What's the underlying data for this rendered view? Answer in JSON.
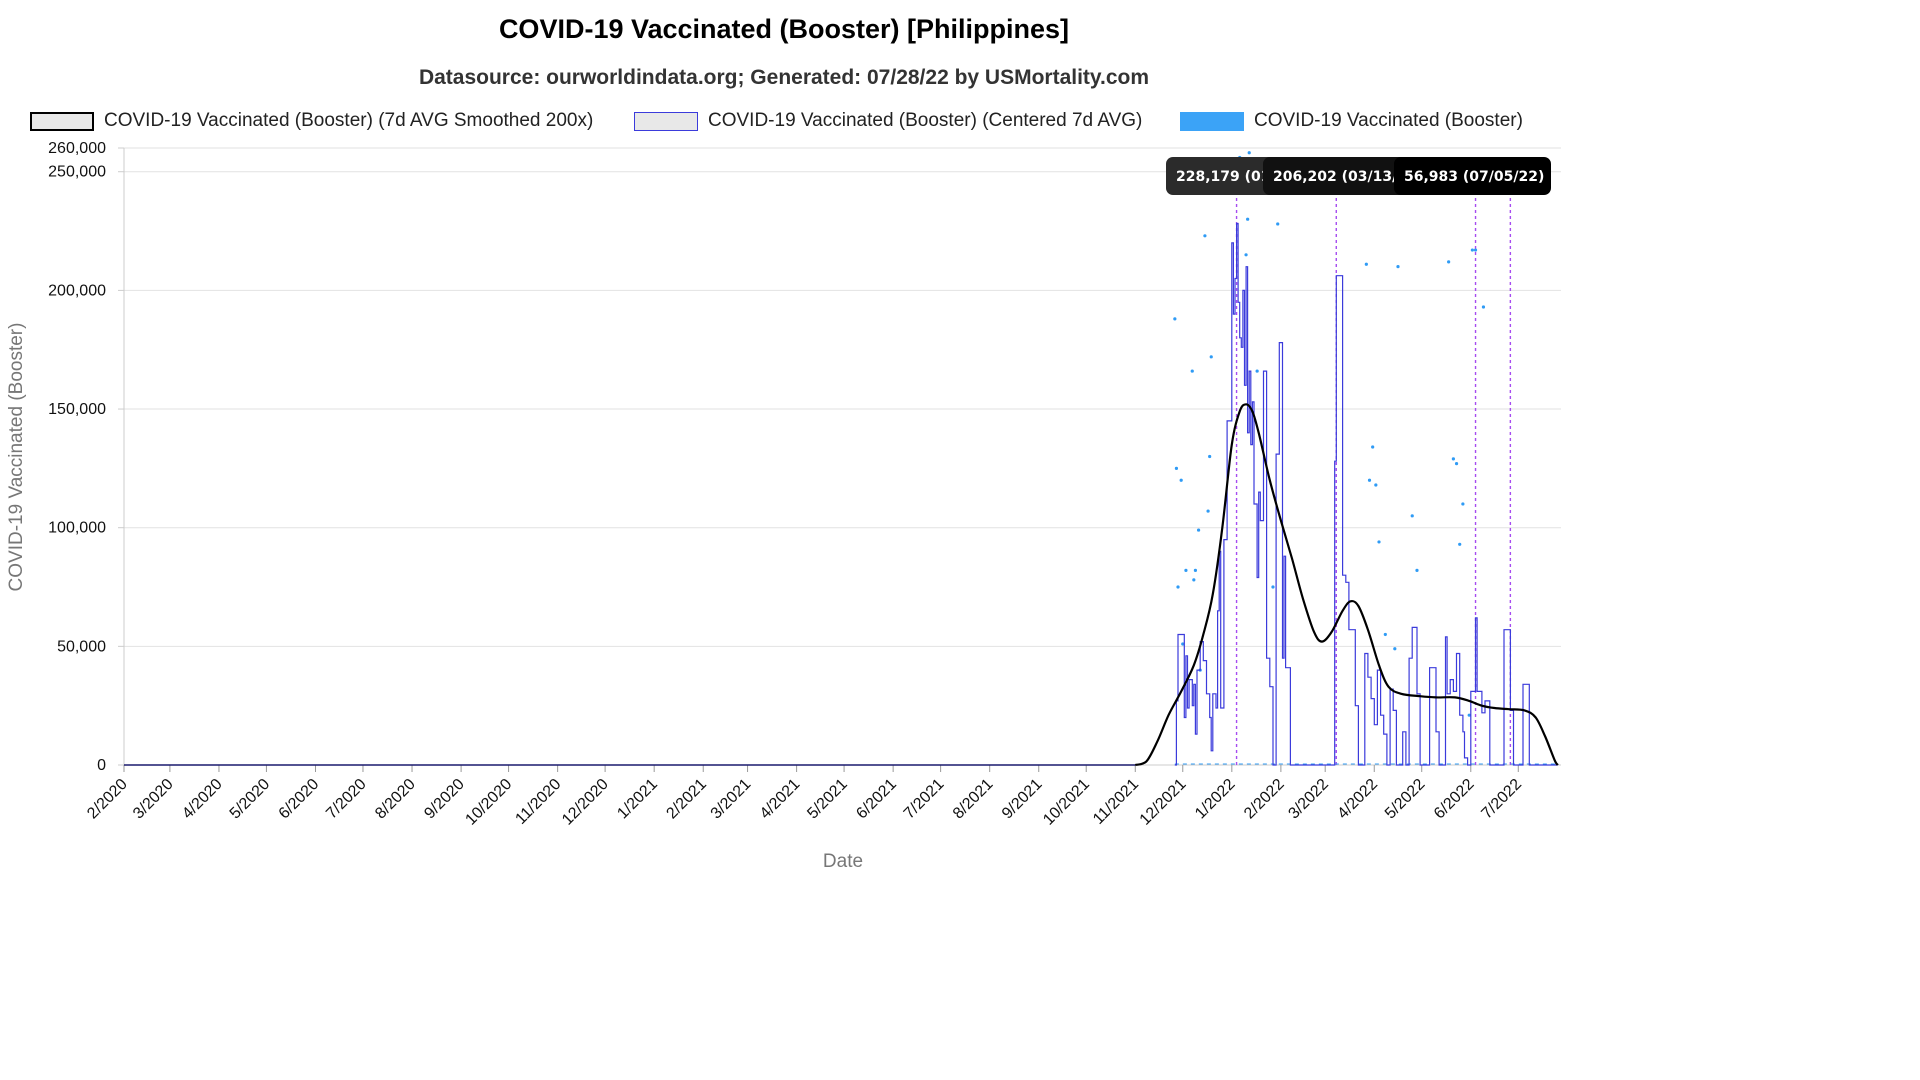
{
  "chart_data": {
    "type": "line",
    "title": "COVID-19 Vaccinated (Booster) [Philippines]",
    "subtitle": "Datasource: ourworldindata.org; Generated: 07/28/22 by USMortality.com",
    "xlabel": "Date",
    "ylabel": "COVID-19 Vaccinated (Booster)",
    "ylim": [
      0,
      260000
    ],
    "y_ticks": [
      0,
      50000,
      100000,
      150000,
      200000,
      250000,
      260000
    ],
    "y_tick_labels": [
      "0",
      "50,000",
      "100,000",
      "150,000",
      "200,000",
      "250,000",
      "260,000"
    ],
    "x_tick_labels": [
      "2/2020",
      "3/2020",
      "4/2020",
      "5/2020",
      "6/2020",
      "7/2020",
      "8/2020",
      "9/2020",
      "10/2020",
      "11/2020",
      "12/2020",
      "1/2021",
      "2/2021",
      "3/2021",
      "4/2021",
      "5/2021",
      "6/2021",
      "7/2021",
      "8/2021",
      "9/2021",
      "10/2021",
      "11/2021",
      "12/2021",
      "1/2022",
      "2/2022",
      "3/2022",
      "4/2022",
      "5/2022",
      "6/2022",
      "7/2022"
    ],
    "x_range": [
      "2020-02-01",
      "2022-07-28"
    ],
    "grid": "horizontal",
    "legend_position": "top",
    "series": [
      {
        "name": "COVID-19 Vaccinated (Booster) (7d AVG Smoothed 200x)",
        "style": "line",
        "color": "#000000",
        "points": [
          [
            "2021-11-01",
            0
          ],
          [
            "2021-11-08",
            1500
          ],
          [
            "2021-11-15",
            10000
          ],
          [
            "2021-11-22",
            21000
          ],
          [
            "2021-11-30",
            31000
          ],
          [
            "2021-12-08",
            42000
          ],
          [
            "2021-12-14",
            55000
          ],
          [
            "2021-12-20",
            72000
          ],
          [
            "2021-12-26",
            100000
          ],
          [
            "2022-01-01",
            135000
          ],
          [
            "2022-01-06",
            149000
          ],
          [
            "2022-01-10",
            152000
          ],
          [
            "2022-01-14",
            149000
          ],
          [
            "2022-01-18",
            140000
          ],
          [
            "2022-01-25",
            120000
          ],
          [
            "2022-02-01",
            103000
          ],
          [
            "2022-02-08",
            87000
          ],
          [
            "2022-02-15",
            70000
          ],
          [
            "2022-02-22",
            56000
          ],
          [
            "2022-02-27",
            52000
          ],
          [
            "2022-03-05",
            56000
          ],
          [
            "2022-03-12",
            65000
          ],
          [
            "2022-03-17",
            69000
          ],
          [
            "2022-03-22",
            67000
          ],
          [
            "2022-03-28",
            57000
          ],
          [
            "2022-04-04",
            42000
          ],
          [
            "2022-04-10",
            33000
          ],
          [
            "2022-04-18",
            30000
          ],
          [
            "2022-04-30",
            29000
          ],
          [
            "2022-05-10",
            28500
          ],
          [
            "2022-05-22",
            28500
          ],
          [
            "2022-05-31",
            27000
          ],
          [
            "2022-06-08",
            25000
          ],
          [
            "2022-06-16",
            24000
          ],
          [
            "2022-06-25",
            23500
          ],
          [
            "2022-07-05",
            23000
          ],
          [
            "2022-07-12",
            20000
          ],
          [
            "2022-07-18",
            12000
          ],
          [
            "2022-07-24",
            2000
          ],
          [
            "2022-07-26",
            0
          ]
        ]
      },
      {
        "name": "COVID-19 Vaccinated (Booster) (Centered 7d AVG)",
        "style": "step",
        "color": "#3b3bdb",
        "points": [
          [
            "2021-11-26",
            0
          ],
          [
            "2021-11-27",
            27000
          ],
          [
            "2021-11-28",
            55000
          ],
          [
            "2021-12-01",
            55000
          ],
          [
            "2021-12-02",
            20000
          ],
          [
            "2021-12-03",
            46000
          ],
          [
            "2021-12-04",
            24000
          ],
          [
            "2021-12-05",
            36000
          ],
          [
            "2021-12-07",
            25000
          ],
          [
            "2021-12-08",
            34000
          ],
          [
            "2021-12-09",
            13000
          ],
          [
            "2021-12-10",
            40000
          ],
          [
            "2021-12-12",
            52000
          ],
          [
            "2021-12-14",
            44000
          ],
          [
            "2021-12-16",
            30000
          ],
          [
            "2021-12-18",
            20000
          ],
          [
            "2021-12-19",
            6000
          ],
          [
            "2021-12-20",
            30000
          ],
          [
            "2021-12-22",
            24000
          ],
          [
            "2021-12-23",
            65000
          ],
          [
            "2021-12-24",
            90000
          ],
          [
            "2021-12-25",
            24000
          ],
          [
            "2021-12-27",
            95000
          ],
          [
            "2021-12-29",
            145000
          ],
          [
            "2022-01-01",
            220000
          ],
          [
            "2022-01-02",
            190000
          ],
          [
            "2022-01-03",
            205000
          ],
          [
            "2022-01-04",
            228179
          ],
          [
            "2022-01-05",
            195000
          ],
          [
            "2022-01-06",
            180000
          ],
          [
            "2022-01-07",
            176000
          ],
          [
            "2022-01-08",
            200000
          ],
          [
            "2022-01-09",
            160000
          ],
          [
            "2022-01-10",
            210000
          ],
          [
            "2022-01-11",
            140000
          ],
          [
            "2022-01-12",
            166000
          ],
          [
            "2022-01-13",
            135000
          ],
          [
            "2022-01-14",
            153000
          ],
          [
            "2022-01-15",
            110000
          ],
          [
            "2022-01-17",
            79000
          ],
          [
            "2022-01-18",
            115000
          ],
          [
            "2022-01-19",
            103000
          ],
          [
            "2022-01-21",
            166000
          ],
          [
            "2022-01-23",
            45000
          ],
          [
            "2022-01-25",
            33000
          ],
          [
            "2022-01-27",
            0
          ],
          [
            "2022-01-29",
            131000
          ],
          [
            "2022-01-31",
            178000
          ],
          [
            "2022-02-02",
            45000
          ],
          [
            "2022-02-03",
            88000
          ],
          [
            "2022-02-04",
            41000
          ],
          [
            "2022-02-07",
            0
          ],
          [
            "2022-02-12",
            0
          ],
          [
            "2022-02-13",
            0
          ],
          [
            "2022-02-18",
            0
          ],
          [
            "2022-02-20",
            0
          ],
          [
            "2022-03-06",
            0
          ],
          [
            "2022-03-07",
            128000
          ],
          [
            "2022-03-08",
            206202
          ],
          [
            "2022-03-12",
            80000
          ],
          [
            "2022-03-14",
            77000
          ],
          [
            "2022-03-16",
            57000
          ],
          [
            "2022-03-18",
            57000
          ],
          [
            "2022-03-20",
            25000
          ],
          [
            "2022-03-22",
            0
          ],
          [
            "2022-03-26",
            47000
          ],
          [
            "2022-03-28",
            37000
          ],
          [
            "2022-03-30",
            28000
          ],
          [
            "2022-04-01",
            17000
          ],
          [
            "2022-04-03",
            40000
          ],
          [
            "2022-04-05",
            21000
          ],
          [
            "2022-04-07",
            13000
          ],
          [
            "2022-04-09",
            0
          ],
          [
            "2022-04-11",
            32000
          ],
          [
            "2022-04-13",
            23000
          ],
          [
            "2022-04-15",
            0
          ],
          [
            "2022-04-19",
            14000
          ],
          [
            "2022-04-21",
            0
          ],
          [
            "2022-04-23",
            45000
          ],
          [
            "2022-04-25",
            58000
          ],
          [
            "2022-04-28",
            30000
          ],
          [
            "2022-04-30",
            0
          ],
          [
            "2022-05-04",
            0
          ],
          [
            "2022-05-06",
            41000
          ],
          [
            "2022-05-10",
            14000
          ],
          [
            "2022-05-12",
            0
          ],
          [
            "2022-05-14",
            0
          ],
          [
            "2022-05-16",
            54000
          ],
          [
            "2022-05-17",
            30000
          ],
          [
            "2022-05-19",
            36000
          ],
          [
            "2022-05-21",
            31000
          ],
          [
            "2022-05-23",
            47000
          ],
          [
            "2022-05-25",
            21000
          ],
          [
            "2022-05-27",
            14000
          ],
          [
            "2022-05-28",
            3000
          ],
          [
            "2022-05-30",
            0
          ],
          [
            "2022-06-01",
            31000
          ],
          [
            "2022-06-04",
            62000
          ],
          [
            "2022-06-05",
            31000
          ],
          [
            "2022-06-08",
            22000
          ],
          [
            "2022-06-10",
            27000
          ],
          [
            "2022-06-13",
            0
          ],
          [
            "2022-06-21",
            0
          ],
          [
            "2022-06-22",
            57000
          ],
          [
            "2022-06-26",
            23000
          ],
          [
            "2022-06-28",
            0
          ],
          [
            "2022-07-02",
            0
          ],
          [
            "2022-07-04",
            34000
          ],
          [
            "2022-07-08",
            0
          ],
          [
            "2022-07-26",
            0
          ]
        ]
      },
      {
        "name": "COVID-19 Vaccinated (Booster)",
        "style": "points",
        "color": "#2f9bf5",
        "points": [
          [
            "2021-11-26",
            188000
          ],
          [
            "2021-11-27",
            125000
          ],
          [
            "2021-11-28",
            75000
          ],
          [
            "2021-11-30",
            120000
          ],
          [
            "2021-12-01",
            51000
          ],
          [
            "2021-12-03",
            82000
          ],
          [
            "2021-12-07",
            166000
          ],
          [
            "2021-12-08",
            78000
          ],
          [
            "2021-12-09",
            82000
          ],
          [
            "2021-12-11",
            99000
          ],
          [
            "2021-12-12",
            40000
          ],
          [
            "2021-12-15",
            223000
          ],
          [
            "2021-12-17",
            107000
          ],
          [
            "2021-12-18",
            130000
          ],
          [
            "2021-12-19",
            172000
          ],
          [
            "2022-01-02",
            254000
          ],
          [
            "2022-01-06",
            256000
          ],
          [
            "2022-01-10",
            215000
          ],
          [
            "2022-01-11",
            230000
          ],
          [
            "2022-01-12",
            258000
          ],
          [
            "2022-01-17",
            166000
          ],
          [
            "2022-01-27",
            75000
          ],
          [
            "2022-01-30",
            228000
          ],
          [
            "2022-03-27",
            211000
          ],
          [
            "2022-03-29",
            120000
          ],
          [
            "2022-03-31",
            134000
          ],
          [
            "2022-04-02",
            118000
          ],
          [
            "2022-04-04",
            94000
          ],
          [
            "2022-04-08",
            55000
          ],
          [
            "2022-04-14",
            49000
          ],
          [
            "2022-04-16",
            210000
          ],
          [
            "2022-04-25",
            105000
          ],
          [
            "2022-04-28",
            82000
          ],
          [
            "2022-05-18",
            212000
          ],
          [
            "2022-05-21",
            129000
          ],
          [
            "2022-05-23",
            127000
          ],
          [
            "2022-05-25",
            93000
          ],
          [
            "2022-05-27",
            110000
          ],
          [
            "2022-05-31",
            21000
          ],
          [
            "2022-06-02",
            217000
          ],
          [
            "2022-06-04",
            217000
          ],
          [
            "2022-06-09",
            193000
          ]
        ]
      }
    ],
    "markers": [
      {
        "date": "2022-01-04",
        "label": "228,179 (01/04/22)"
      },
      {
        "date": "2022-03-08",
        "label": "206,202 (03/13/22)"
      },
      {
        "date": "2022-06-04",
        "label": "56,983 (07/05/22)"
      },
      {
        "date": "2022-06-26",
        "label": ""
      }
    ]
  },
  "legend": [
    {
      "label": "COVID-19 Vaccinated (Booster) (7d AVG Smoothed 200x)",
      "fill": "#e8e8e8",
      "border": "#000000"
    },
    {
      "label": "COVID-19 Vaccinated (Booster) (Centered 7d AVG)",
      "fill": "#e8e8e8",
      "border": "#3b3bdb"
    },
    {
      "label": "COVID-19 Vaccinated (Booster)",
      "fill": "#3ba3f7",
      "border": "#3ba3f7"
    }
  ],
  "tooltips": [
    {
      "label": "228,179 (01/04/22)"
    },
    {
      "label": "206,202 (03/13/22)"
    },
    {
      "label": "56,983 (07/05/22)"
    }
  ]
}
